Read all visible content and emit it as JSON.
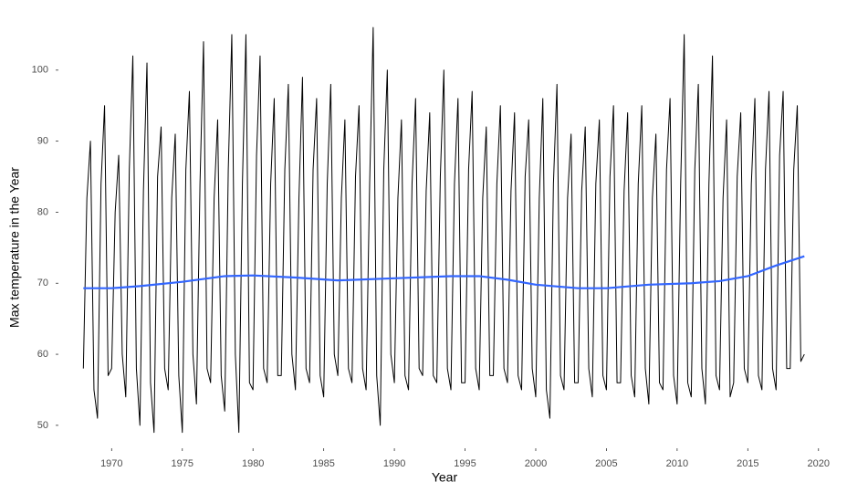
{
  "chart_data": {
    "type": "line",
    "x_label": "Year",
    "y_label": "Max temperature in the Year",
    "xlim": [
      1966.3,
      2021.5
    ],
    "ylim": [
      46.9,
      107.3
    ],
    "xticks": [
      1970,
      1975,
      1980,
      1985,
      1990,
      1995,
      2000,
      2005,
      2010,
      2015,
      2020
    ],
    "yticks": [
      50,
      60,
      70,
      80,
      90,
      100
    ],
    "grid": false,
    "series": [
      {
        "color": "#000000",
        "width": 1,
        "x": [
          1968,
          1968.25,
          1968.5,
          1968.75,
          1969,
          1969.25,
          1969.5,
          1969.75,
          1970,
          1970.25,
          1970.5,
          1970.75,
          1971,
          1971.25,
          1971.5,
          1971.75,
          1972,
          1972.25,
          1972.5,
          1972.75,
          1973,
          1973.25,
          1973.5,
          1973.75,
          1974,
          1974.25,
          1974.5,
          1974.75,
          1975,
          1975.25,
          1975.5,
          1975.75,
          1976,
          1976.25,
          1976.5,
          1976.75,
          1977,
          1977.25,
          1977.5,
          1977.75,
          1978,
          1978.25,
          1978.5,
          1978.75,
          1979,
          1979.25,
          1979.5,
          1979.75,
          1980,
          1980.25,
          1980.5,
          1980.75,
          1981,
          1981.25,
          1981.5,
          1981.75,
          1982,
          1982.25,
          1982.5,
          1982.75,
          1983,
          1983.25,
          1983.5,
          1983.75,
          1984,
          1984.25,
          1984.5,
          1984.75,
          1985,
          1985.25,
          1985.5,
          1985.75,
          1986,
          1986.25,
          1986.5,
          1986.75,
          1987,
          1987.25,
          1987.5,
          1987.75,
          1988,
          1988.25,
          1988.5,
          1988.75,
          1989,
          1989.25,
          1989.5,
          1989.75,
          1990,
          1990.25,
          1990.5,
          1990.75,
          1991,
          1991.25,
          1991.5,
          1991.75,
          1992,
          1992.25,
          1992.5,
          1992.75,
          1993,
          1993.25,
          1993.5,
          1993.75,
          1994,
          1994.25,
          1994.5,
          1994.75,
          1995,
          1995.25,
          1995.5,
          1995.75,
          1996,
          1996.25,
          1996.5,
          1996.75,
          1997,
          1997.25,
          1997.5,
          1997.75,
          1998,
          1998.25,
          1998.5,
          1998.75,
          1999,
          1999.25,
          1999.5,
          1999.75,
          2000,
          2000.25,
          2000.5,
          2000.75,
          2001,
          2001.25,
          2001.5,
          2001.75,
          2002,
          2002.25,
          2002.5,
          2002.75,
          2003,
          2003.25,
          2003.5,
          2003.75,
          2004,
          2004.25,
          2004.5,
          2004.75,
          2005,
          2005.25,
          2005.5,
          2005.75,
          2006,
          2006.25,
          2006.5,
          2006.75,
          2007,
          2007.25,
          2007.5,
          2007.75,
          2008,
          2008.25,
          2008.5,
          2008.75,
          2009,
          2009.25,
          2009.5,
          2009.75,
          2010,
          2010.25,
          2010.5,
          2010.75,
          2011,
          2011.25,
          2011.5,
          2011.75,
          2012,
          2012.25,
          2012.5,
          2012.75,
          2013,
          2013.25,
          2013.5,
          2013.75,
          2014,
          2014.25,
          2014.5,
          2014.75,
          2015,
          2015.25,
          2015.5,
          2015.75,
          2016,
          2016.25,
          2016.5,
          2016.75,
          2017,
          2017.25,
          2017.5,
          2017.75,
          2018,
          2018.25,
          2018.5,
          2018.75,
          2019
        ],
        "values": [
          58,
          82,
          90,
          55,
          51,
          84,
          95,
          57,
          58,
          80,
          88,
          60,
          54,
          86,
          102,
          58,
          50,
          83,
          101,
          56,
          49,
          85,
          92,
          58,
          55,
          82,
          91,
          57,
          49,
          86,
          97,
          60,
          53,
          84,
          104,
          58,
          56,
          82,
          93,
          57,
          52,
          86,
          105,
          60,
          49,
          84,
          105,
          56,
          55,
          88,
          102,
          58,
          56,
          84,
          96,
          57,
          57,
          86,
          98,
          60,
          55,
          82,
          99,
          58,
          56,
          86,
          96,
          57,
          54,
          84,
          98,
          60,
          57,
          82,
          93,
          58,
          56,
          85,
          95,
          58,
          55,
          84,
          106,
          57,
          50,
          86,
          100,
          60,
          56,
          82,
          93,
          57,
          55,
          84,
          96,
          58,
          57,
          83,
          94,
          57,
          56,
          85,
          100,
          58,
          55,
          84,
          96,
          56,
          56,
          86,
          97,
          58,
          55,
          82,
          92,
          57,
          57,
          84,
          95,
          58,
          56,
          83,
          94,
          57,
          55,
          85,
          93,
          58,
          54,
          82,
          96,
          55,
          51,
          84,
          98,
          57,
          55,
          82,
          91,
          56,
          56,
          83,
          92,
          58,
          54,
          84,
          93,
          57,
          55,
          85,
          95,
          56,
          56,
          83,
          94,
          57,
          54,
          84,
          95,
          58,
          53,
          82,
          91,
          56,
          55,
          86,
          96,
          57,
          53,
          84,
          105,
          56,
          54,
          86,
          98,
          58,
          53,
          84,
          102,
          57,
          55,
          82,
          93,
          54,
          56,
          85,
          94,
          58,
          56,
          84,
          96,
          57,
          55,
          86,
          97,
          58,
          55,
          88,
          97,
          58,
          58,
          86,
          95,
          59,
          60
        ]
      },
      {
        "color": "#3366ff",
        "width": 2.2,
        "x": [
          1968,
          1970,
          1972,
          1975,
          1978,
          1980,
          1983,
          1986,
          1990,
          1994,
          1996,
          1998,
          2000,
          2003,
          2005,
          2008,
          2011,
          2013,
          2015,
          2017,
          2019
        ],
        "values": [
          69.3,
          69.3,
          69.6,
          70.2,
          71,
          71.1,
          70.8,
          70.4,
          70.7,
          71,
          71,
          70.5,
          69.8,
          69.3,
          69.3,
          69.8,
          70,
          70.3,
          71,
          72.5,
          73.8
        ]
      }
    ]
  }
}
